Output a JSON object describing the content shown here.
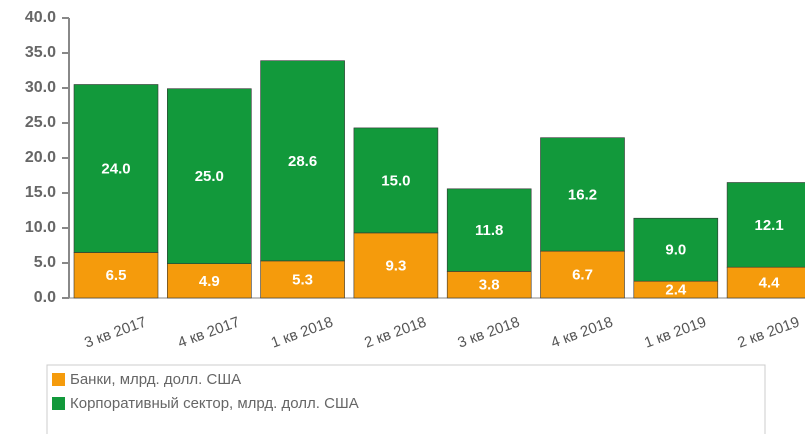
{
  "chart_data": {
    "type": "stacked_bar",
    "categories": [
      "3 кв 2017",
      "4 кв 2017",
      "1 кв 2018",
      "2 кв 2018",
      "3 кв 2018",
      "4 кв 2018",
      "1 кв 2019",
      "2 кв 2019"
    ],
    "series": [
      {
        "name": "Банки, млрд. долл. США",
        "color": "#f59b0c",
        "values": [
          6.5,
          4.9,
          5.3,
          9.3,
          3.8,
          6.7,
          2.4,
          4.4
        ],
        "value_labels": [
          "6.5",
          "4.9",
          "5.3",
          "9.3",
          "3.8",
          "6.7",
          "2.4",
          "4.4"
        ]
      },
      {
        "name": "Корпоративный сектор, млрд. долл. США",
        "color": "#12993b",
        "values": [
          24,
          25,
          28.6,
          15,
          11.8,
          16.2,
          9,
          12.1
        ],
        "value_labels": [
          "24.0",
          "25.0",
          "28.6",
          "15.0",
          "11.8",
          "16.2",
          "9.0",
          "12.1"
        ]
      }
    ],
    "ylim": [
      0,
      40
    ],
    "yticks": [
      {
        "value": 0,
        "label": "0.0"
      },
      {
        "value": 5,
        "label": "5.0"
      },
      {
        "value": 10,
        "label": "10.0"
      },
      {
        "value": 15,
        "label": "15.0"
      },
      {
        "value": 20,
        "label": "20.0"
      },
      {
        "value": 25,
        "label": "25.0"
      },
      {
        "value": 30,
        "label": "30.0"
      },
      {
        "value": 35,
        "label": "35.0"
      },
      {
        "value": 40,
        "label": "40.0"
      }
    ],
    "legend": "bottom-left"
  }
}
